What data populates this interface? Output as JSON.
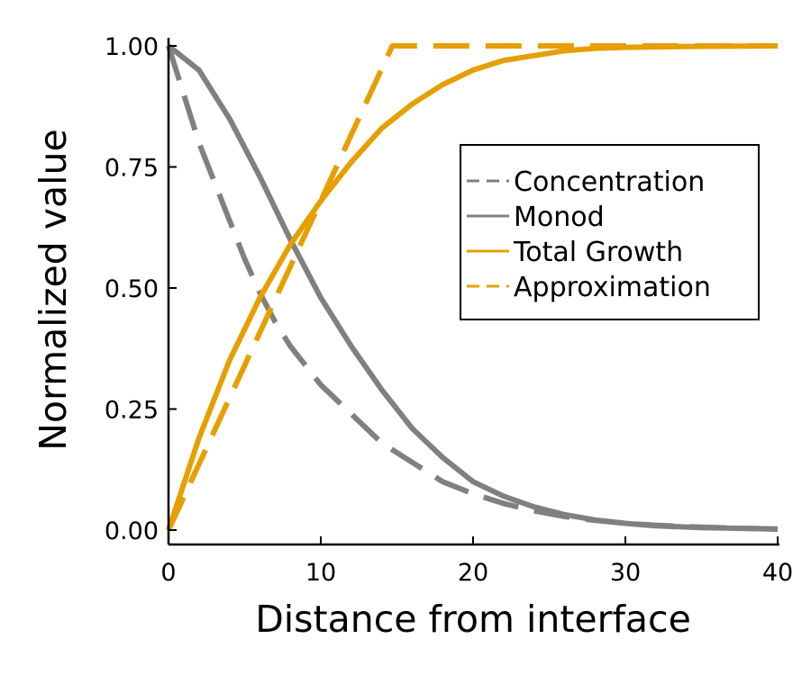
{
  "chart_data": {
    "type": "line",
    "title": "",
    "xlabel": "Distance from interface",
    "ylabel": "Normalized value",
    "xlim": [
      0,
      40
    ],
    "ylim": [
      0,
      1
    ],
    "x_ticks": [
      0,
      10,
      20,
      30,
      40
    ],
    "x_tick_labels": [
      "0",
      "10",
      "20",
      "30",
      "40"
    ],
    "y_ticks": [
      0,
      0.25,
      0.5,
      0.75,
      1
    ],
    "y_tick_labels": [
      "0.00",
      "0.25",
      "0.50",
      "0.75",
      "1.00"
    ],
    "grid": false,
    "legend_position": "right",
    "series": [
      {
        "name": "Concentration",
        "color": "#808080",
        "dash": "dashed",
        "x": [
          0,
          1,
          2,
          3,
          4,
          5,
          6,
          7,
          8,
          10,
          12,
          14,
          16,
          18,
          20,
          22,
          24,
          26,
          28,
          30,
          32,
          35,
          40
        ],
        "y": [
          1,
          0.9,
          0.8,
          0.72,
          0.64,
          0.56,
          0.49,
          0.43,
          0.38,
          0.3,
          0.24,
          0.18,
          0.14,
          0.1,
          0.075,
          0.055,
          0.04,
          0.028,
          0.02,
          0.014,
          0.01,
          0.006,
          0.002
        ]
      },
      {
        "name": "Monod",
        "color": "#808080",
        "dash": "solid",
        "x": [
          0,
          2,
          4,
          6,
          8,
          10,
          12,
          14,
          16,
          18,
          20,
          22,
          24,
          26,
          28,
          30,
          32,
          35,
          40
        ],
        "y": [
          1,
          0.95,
          0.85,
          0.73,
          0.6,
          0.48,
          0.38,
          0.29,
          0.21,
          0.15,
          0.1,
          0.07,
          0.048,
          0.032,
          0.021,
          0.014,
          0.009,
          0.005,
          0.002
        ]
      },
      {
        "name": "Total Growth",
        "color": "#E69F00",
        "dash": "solid",
        "x": [
          0,
          2,
          4,
          6,
          8,
          10,
          12,
          14,
          16,
          18,
          20,
          22,
          24,
          26,
          28,
          30,
          32,
          35,
          40
        ],
        "y": [
          0,
          0.19,
          0.35,
          0.48,
          0.59,
          0.68,
          0.76,
          0.83,
          0.88,
          0.92,
          0.95,
          0.97,
          0.98,
          0.99,
          0.995,
          0.997,
          0.998,
          0.999,
          1.0
        ]
      },
      {
        "name": "Approximation",
        "color": "#E69F00",
        "dash": "dashed",
        "x": [
          0,
          14.7,
          40
        ],
        "y": [
          0,
          1,
          1
        ]
      }
    ]
  }
}
